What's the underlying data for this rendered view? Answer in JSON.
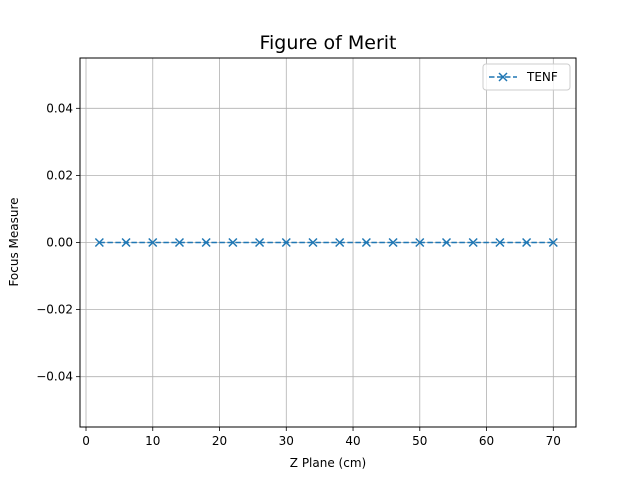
{
  "chart_data": {
    "type": "line",
    "title": "Figure of Merit",
    "xlabel": "Z Plane (cm)",
    "ylabel": "Focus Measure",
    "xlim": [
      -0.9,
      73.4
    ],
    "ylim": [
      -0.055,
      0.055
    ],
    "xticks": [
      0,
      10,
      20,
      30,
      40,
      50,
      60,
      70
    ],
    "xtick_labels": [
      "0",
      "10",
      "20",
      "30",
      "40",
      "50",
      "60",
      "70"
    ],
    "yticks": [
      -0.04,
      -0.02,
      0.0,
      0.02,
      0.04
    ],
    "ytick_labels": [
      "−0.04",
      "−0.02",
      "0.00",
      "0.02",
      "0.04"
    ],
    "grid": true,
    "legend_position": "top-right",
    "series": [
      {
        "name": "TENF",
        "color": "#1f77b4",
        "line_style": "dashed",
        "marker": "x",
        "x": [
          2,
          6,
          10,
          14,
          18,
          22,
          26,
          30,
          34,
          38,
          42,
          46,
          50,
          54,
          58,
          62,
          66,
          70
        ],
        "y": [
          0,
          0,
          0,
          0,
          0,
          0,
          0,
          0,
          0,
          0,
          0,
          0,
          0,
          0,
          0,
          0,
          0,
          0
        ]
      }
    ]
  }
}
